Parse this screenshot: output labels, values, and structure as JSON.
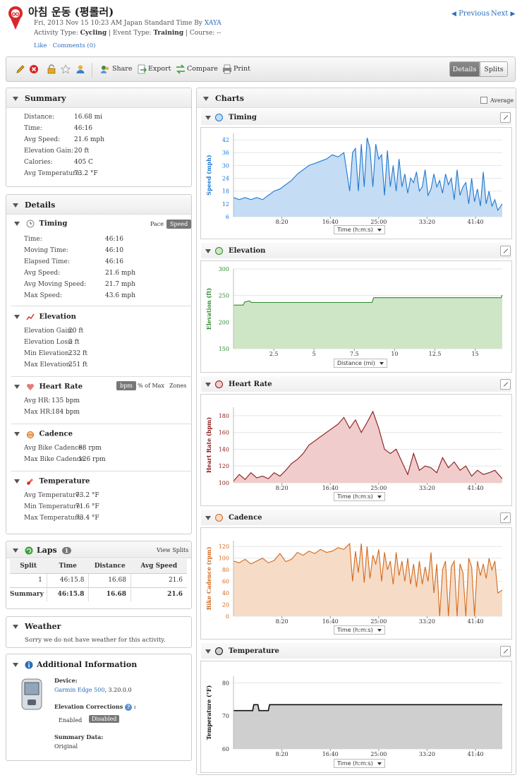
{
  "header": {
    "title": "아침 운동 (평롤러)",
    "date_line_prefix": "Fri, 2013 Nov 15 10:23 AM Japan Standard Time By",
    "author": "XAYA",
    "activity_type_label": "Activity Type:",
    "activity_type": "Cycling",
    "event_type_label": "| Event Type:",
    "event_type": "Training",
    "course_label": "| Course: --",
    "like": "Like",
    "comments": "Comments (0)",
    "previous": "Previous",
    "next": "Next"
  },
  "toolbar": {
    "share": "Share",
    "export": "Export",
    "compare": "Compare",
    "print": "Print",
    "details": "Details",
    "splits": "Splits"
  },
  "summary": {
    "title": "Summary",
    "rows": [
      {
        "k": "Distance:",
        "v": "16.68 mi"
      },
      {
        "k": "Time:",
        "v": "46:16"
      },
      {
        "k": "Avg Speed:",
        "v": "21.6 mph"
      },
      {
        "k": "Elevation Gain:",
        "v": "20 ft"
      },
      {
        "k": "Calories:",
        "v": "405 C"
      },
      {
        "k": "Avg Temperature:",
        "v": "73.2 °F"
      }
    ]
  },
  "details": {
    "title": "Details",
    "timing": {
      "title": "Timing",
      "pace": "Pace",
      "speed": "Speed",
      "rows": [
        {
          "k": "Time:",
          "v": "46:16"
        },
        {
          "k": "Moving Time:",
          "v": "46:10"
        },
        {
          "k": "Elapsed Time:",
          "v": "46:16"
        },
        {
          "k": "Avg Speed:",
          "v": "21.6 mph"
        },
        {
          "k": "Avg Moving Speed:",
          "v": "21.7 mph"
        },
        {
          "k": "Max Speed:",
          "v": "43.6 mph"
        }
      ]
    },
    "elevation": {
      "title": "Elevation",
      "rows": [
        {
          "k": "Elevation Gain:",
          "v": "20 ft"
        },
        {
          "k": "Elevation Loss:",
          "v": "3 ft"
        },
        {
          "k": "Min Elevation:",
          "v": "232 ft"
        },
        {
          "k": "Max Elevation:",
          "v": "251 ft"
        }
      ]
    },
    "heart_rate": {
      "title": "Heart Rate",
      "bpm": "bpm",
      "pct_max": "% of Max",
      "zones": "Zones",
      "rows": [
        {
          "k": "Avg HR:",
          "v": "135 bpm"
        },
        {
          "k": "Max HR:",
          "v": "184 bpm"
        }
      ]
    },
    "cadence": {
      "title": "Cadence",
      "rows": [
        {
          "k": "Avg Bike Cadence:",
          "v": "88 rpm"
        },
        {
          "k": "Max Bike Cadence:",
          "v": "126 rpm"
        }
      ]
    },
    "temperature": {
      "title": "Temperature",
      "rows": [
        {
          "k": "Avg Temperature:",
          "v": "73.2 °F"
        },
        {
          "k": "Min Temperature:",
          "v": "71.6 °F"
        },
        {
          "k": "Max Temperature:",
          "v": "73.4 °F"
        }
      ]
    }
  },
  "laps": {
    "title": "Laps",
    "count": "1",
    "view_splits": "View Splits",
    "headers": [
      "Split",
      "Time",
      "Distance",
      "Avg Speed"
    ],
    "row": [
      "1",
      "46:15.8",
      "16.68",
      "21.6"
    ],
    "summary": [
      "Summary",
      "46:15.8",
      "16.68",
      "21.6"
    ]
  },
  "weather": {
    "title": "Weather",
    "text": "Sorry we do not have weather for this activity."
  },
  "additional": {
    "title": "Additional Information",
    "device_label": "Device:",
    "device": "Garmin Edge 500",
    "device_version": ", 3.20.0.0",
    "elev_corr_label": "Elevation Corrections",
    "enabled": "Enabled",
    "disabled": "Disabled",
    "summary_data_label": "Summary Data:",
    "summary_data": "Original"
  },
  "charts": {
    "title": "Charts",
    "average": "Average"
  },
  "chart_data": [
    {
      "type": "area",
      "title": "Timing",
      "ylabel": "Speed (mph)",
      "xaxis_select": "Time (h:m:s)",
      "color": "#1f78d1",
      "fill": "#c4dcf4",
      "ylim": [
        6,
        45
      ],
      "yticks": [
        6,
        12,
        18,
        24,
        30,
        36,
        42
      ],
      "xmax": 46.27,
      "xticks": [
        "8:20",
        "16:40",
        "25:00",
        "33:20",
        "41:40"
      ],
      "xtick_values": [
        8.33,
        16.67,
        25,
        33.33,
        41.67
      ],
      "x": [
        0,
        1,
        2,
        3,
        4,
        5,
        6,
        7,
        8,
        9,
        10,
        11,
        12,
        13,
        14,
        15,
        16,
        17,
        18,
        19,
        20,
        20.5,
        21,
        21.5,
        22,
        22.5,
        23,
        23.5,
        24,
        24.5,
        25,
        25.5,
        26,
        26.5,
        27,
        27.5,
        28,
        28.5,
        29,
        29.5,
        30,
        30.5,
        31,
        31.5,
        32,
        32.5,
        33,
        33.5,
        34,
        34.5,
        35,
        35.5,
        36,
        36.5,
        37,
        37.5,
        38,
        38.5,
        39,
        39.5,
        40,
        40.5,
        41,
        41.5,
        42,
        42.5,
        43,
        43.5,
        44,
        44.5,
        45,
        45.5,
        46.27
      ],
      "values": [
        15,
        14,
        15,
        14,
        15,
        14,
        16,
        18,
        19,
        21,
        23,
        26,
        28,
        30,
        31,
        32,
        33,
        35,
        34,
        36,
        18,
        36,
        38,
        18,
        40,
        20,
        43,
        38,
        20,
        40,
        33,
        35,
        16,
        37,
        20,
        30,
        18,
        33,
        20,
        26,
        17,
        24,
        22,
        27,
        18,
        20,
        28,
        16,
        19,
        26,
        20,
        23,
        17,
        26,
        21,
        24,
        14,
        28,
        16,
        20,
        22,
        12,
        24,
        13,
        19,
        11,
        27,
        12,
        18,
        11,
        14,
        9,
        12
      ]
    },
    {
      "type": "area",
      "title": "Elevation",
      "ylabel": "Elevation (ft)",
      "xaxis_select": "Distance (mi)",
      "color": "#2f8a2f",
      "fill": "#cfe6c6",
      "ylim": [
        150,
        300
      ],
      "yticks": [
        150,
        200,
        250,
        300
      ],
      "xmax": 16.68,
      "xticks": [
        "2.5",
        "5",
        "7.5",
        "10",
        "12.5",
        "15"
      ],
      "xtick_values": [
        2.5,
        5,
        7.5,
        10,
        12.5,
        15
      ],
      "x": [
        0,
        0.6,
        0.7,
        1.0,
        1.1,
        8.6,
        8.7,
        16.6,
        16.68
      ],
      "values": [
        232,
        232,
        238,
        240,
        237,
        237,
        246,
        246,
        251
      ]
    },
    {
      "type": "area",
      "title": "Heart Rate",
      "ylabel": "Heart Rate (bpm)",
      "xaxis_select": "Time (h:m:s)",
      "color": "#8b1a1a",
      "fill": "#f0cccc",
      "ylim": [
        100,
        190
      ],
      "yticks": [
        100,
        120,
        140,
        160,
        180
      ],
      "xmax": 46.27,
      "xticks": [
        "8:20",
        "16:40",
        "25:00",
        "33:20",
        "41:40"
      ],
      "xtick_values": [
        8.33,
        16.67,
        25,
        33.33,
        41.67
      ],
      "x": [
        0,
        1,
        2,
        3,
        4,
        5,
        6,
        7,
        8,
        9,
        10,
        11,
        12,
        13,
        14,
        15,
        16,
        17,
        18,
        19,
        20,
        21,
        22,
        23,
        24,
        25,
        26,
        27,
        28,
        29,
        30,
        31,
        32,
        33,
        34,
        35,
        36,
        37,
        38,
        39,
        40,
        41,
        42,
        43,
        44,
        45,
        46.27
      ],
      "values": [
        102,
        110,
        104,
        112,
        106,
        108,
        105,
        112,
        108,
        115,
        123,
        128,
        135,
        145,
        150,
        155,
        160,
        165,
        170,
        178,
        165,
        175,
        160,
        172,
        185,
        165,
        140,
        135,
        140,
        125,
        110,
        135,
        115,
        120,
        118,
        112,
        130,
        118,
        125,
        115,
        120,
        108,
        115,
        110,
        112,
        115,
        105
      ]
    },
    {
      "type": "area",
      "title": "Cadence",
      "ylabel": "Bike Cadence (rpm)",
      "xaxis_select": "Time (h:m:s)",
      "color": "#d2691e",
      "fill": "#f6dcc6",
      "ylim": [
        0,
        130
      ],
      "yticks": [
        0,
        20,
        40,
        60,
        80,
        100,
        120
      ],
      "xmax": 46.27,
      "xticks": [
        "8:20",
        "16:40",
        "25:00",
        "33:20",
        "41:40"
      ],
      "xtick_values": [
        8.33,
        16.67,
        25,
        33.33,
        41.67
      ],
      "x": [
        0,
        1,
        2,
        3,
        4,
        5,
        6,
        7,
        8,
        9,
        10,
        11,
        12,
        13,
        14,
        15,
        16,
        17,
        18,
        19,
        20,
        20.5,
        21,
        21.5,
        22,
        22.5,
        23,
        23.5,
        24,
        24.5,
        25,
        25.5,
        26,
        26.5,
        27,
        27.5,
        28,
        28.5,
        29,
        29.5,
        30,
        30.5,
        31,
        31.5,
        32,
        32.5,
        33,
        33.5,
        34,
        34.5,
        35,
        35.5,
        36,
        36.5,
        37,
        37.5,
        38,
        38.5,
        39,
        39.5,
        40,
        40.5,
        41,
        41.5,
        42,
        42.5,
        43,
        43.5,
        44,
        44.5,
        45,
        45.5,
        46.27
      ],
      "values": [
        95,
        92,
        98,
        90,
        95,
        100,
        92,
        96,
        108,
        94,
        98,
        110,
        105,
        112,
        108,
        115,
        110,
        112,
        118,
        115,
        125,
        60,
        112,
        75,
        125,
        58,
        120,
        65,
        105,
        90,
        115,
        60,
        110,
        80,
        95,
        55,
        110,
        70,
        95,
        60,
        100,
        55,
        90,
        50,
        95,
        55,
        85,
        60,
        110,
        40,
        90,
        0,
        80,
        95,
        0,
        85,
        95,
        0,
        90,
        75,
        0,
        100,
        85,
        0,
        95,
        70,
        90,
        65,
        100,
        80,
        95,
        40,
        45
      ]
    },
    {
      "type": "area",
      "title": "Temperature",
      "ylabel": "Temperature (°F)",
      "xaxis_select": "Time (h:m:s)",
      "color": "#111111",
      "fill": "#cfcfcf",
      "ylim": [
        60,
        82
      ],
      "yticks": [
        60,
        70,
        80
      ],
      "xmax": 46.27,
      "xticks": [
        "8:20",
        "16:40",
        "25:00",
        "33:20",
        "41:40"
      ],
      "xtick_values": [
        8.33,
        16.67,
        25,
        33.33,
        41.67
      ],
      "x": [
        0,
        3.3,
        3.5,
        4.2,
        4.4,
        6.0,
        6.2,
        46.27
      ],
      "values": [
        71.6,
        71.6,
        73.4,
        73.4,
        71.6,
        71.6,
        73.4,
        73.4
      ]
    }
  ]
}
